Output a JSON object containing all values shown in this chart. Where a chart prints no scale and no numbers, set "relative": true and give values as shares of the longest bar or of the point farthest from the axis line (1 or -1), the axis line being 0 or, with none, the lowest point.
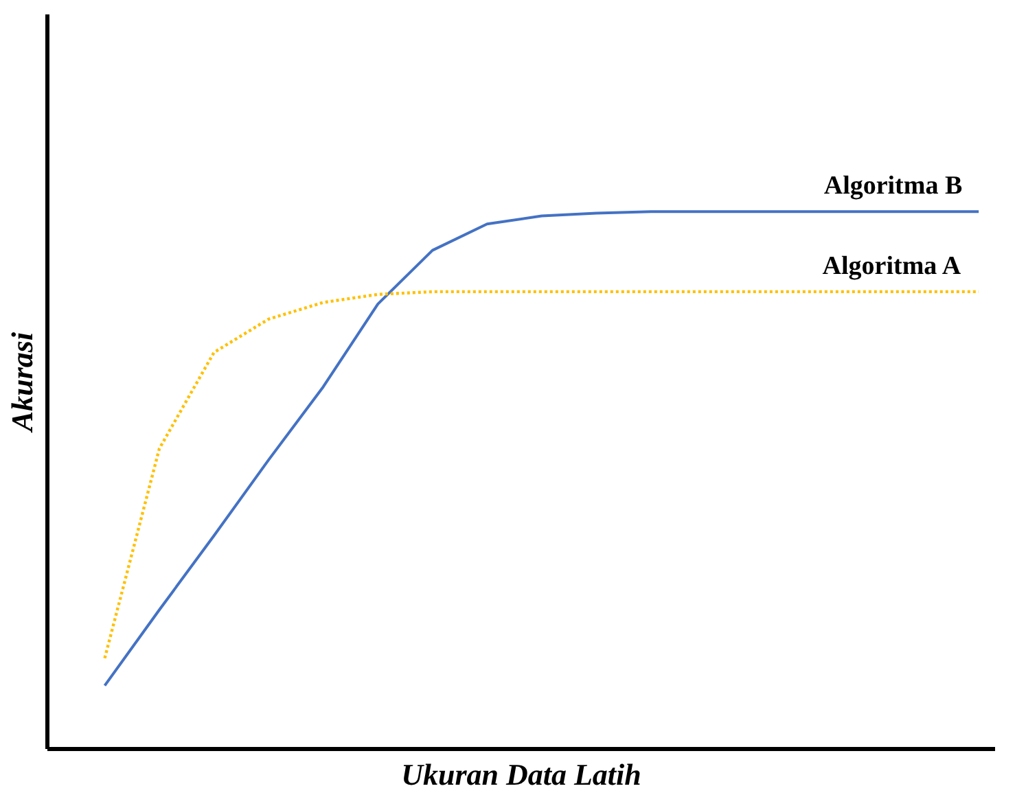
{
  "chart_data": {
    "type": "line",
    "relative": true,
    "xlabel": "Ukuran Data Latih",
    "ylabel": "Akurasi",
    "categories": [
      null,
      null,
      null,
      null,
      null,
      null,
      null,
      null,
      null,
      null,
      null,
      null,
      null,
      null,
      null,
      null,
      null
    ],
    "series": [
      {
        "name": "Algoritma B",
        "color": "#4472c4",
        "line_style": "solid",
        "values": [
          0.118,
          0.259,
          0.397,
          0.538,
          0.674,
          0.828,
          0.928,
          0.977,
          0.992,
          0.997,
          1.0,
          1.0,
          1.0,
          1.0,
          1.0,
          1.0,
          1.0
        ]
      },
      {
        "name": "Algoritma A",
        "color": "#ffc000",
        "line_style": "dotted",
        "values": [
          0.169,
          0.559,
          0.738,
          0.8,
          0.831,
          0.846,
          0.851,
          0.851,
          0.851,
          0.851,
          0.851,
          0.851,
          0.851,
          0.851,
          0.851,
          0.851,
          0.851
        ]
      }
    ],
    "grid": false,
    "marker": "none"
  }
}
